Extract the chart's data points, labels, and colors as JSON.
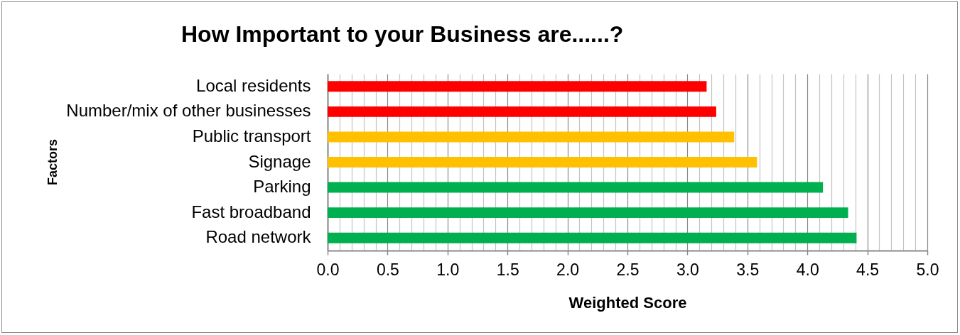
{
  "chart_data": {
    "type": "bar",
    "orientation": "horizontal",
    "title": "How Important to your Business are......?",
    "xlabel": "Weighted Score",
    "ylabel": "Factors",
    "categories": [
      "Local residents",
      "Number/mix of other businesses",
      "Public transport",
      "Signage",
      "Parking",
      "Fast broadband",
      "Road network"
    ],
    "values": [
      3.16,
      3.24,
      3.39,
      3.58,
      4.13,
      4.34,
      4.41
    ],
    "colors": [
      "#ff0000",
      "#ff0000",
      "#ffc000",
      "#ffc000",
      "#00b050",
      "#00b050",
      "#00b050"
    ],
    "xlim": [
      0,
      5
    ],
    "xticks": [
      {
        "value": 0,
        "label": "0.0"
      },
      {
        "value": 0.1,
        "label": null
      },
      {
        "value": 0.2,
        "label": null
      },
      {
        "value": 0.3,
        "label": null
      },
      {
        "value": 0.4,
        "label": null
      },
      0.5,
      {
        "value": 0.6,
        "label": null
      },
      {
        "value": 0.7,
        "label": null
      },
      {
        "value": 0.8,
        "label": null
      },
      {
        "value": 0.9,
        "label": null
      },
      {
        "value": 1,
        "label": "1.0"
      },
      {
        "value": 1.1,
        "label": null
      },
      {
        "value": 1.2,
        "label": null
      },
      {
        "value": 1.3,
        "label": null
      },
      {
        "value": 1.4,
        "label": null
      },
      1.5,
      {
        "value": 1.6,
        "label": null
      },
      {
        "value": 1.7,
        "label": null
      },
      {
        "value": 1.8,
        "label": null
      },
      {
        "value": 1.9,
        "label": null
      },
      {
        "value": 2,
        "label": "2.0"
      },
      {
        "value": 2.1,
        "label": null
      },
      {
        "value": 2.2,
        "label": null
      },
      {
        "value": 2.3,
        "label": null
      },
      {
        "value": 2.4,
        "label": null
      },
      2.5,
      {
        "value": 2.6,
        "label": null
      },
      {
        "value": 2.7,
        "label": null
      },
      {
        "value": 2.8,
        "label": null
      },
      {
        "value": 2.9,
        "label": null
      },
      {
        "value": 3,
        "label": "3.0"
      },
      {
        "value": 3.1,
        "label": null
      },
      {
        "value": 3.2,
        "label": null
      },
      {
        "value": 3.3,
        "label": null
      },
      {
        "value": 3.4,
        "label": null
      },
      3.5,
      {
        "value": 3.6,
        "label": null
      },
      {
        "value": 3.7,
        "label": null
      },
      {
        "value": 3.8,
        "label": null
      },
      {
        "value": 3.9,
        "label": null
      },
      {
        "value": 4,
        "label": "4.0"
      },
      {
        "value": 4.1,
        "label": null
      },
      {
        "value": 4.2,
        "label": null
      },
      {
        "value": 4.3,
        "label": null
      },
      {
        "value": 4.4,
        "label": null
      },
      4.5,
      {
        "value": 4.6,
        "label": null
      },
      {
        "value": 4.7,
        "label": null
      },
      {
        "value": 4.8,
        "label": null
      },
      {
        "value": 4.9,
        "label": null
      },
      {
        "value": 5,
        "label": "5.0"
      }
    ],
    "grid": "x"
  }
}
